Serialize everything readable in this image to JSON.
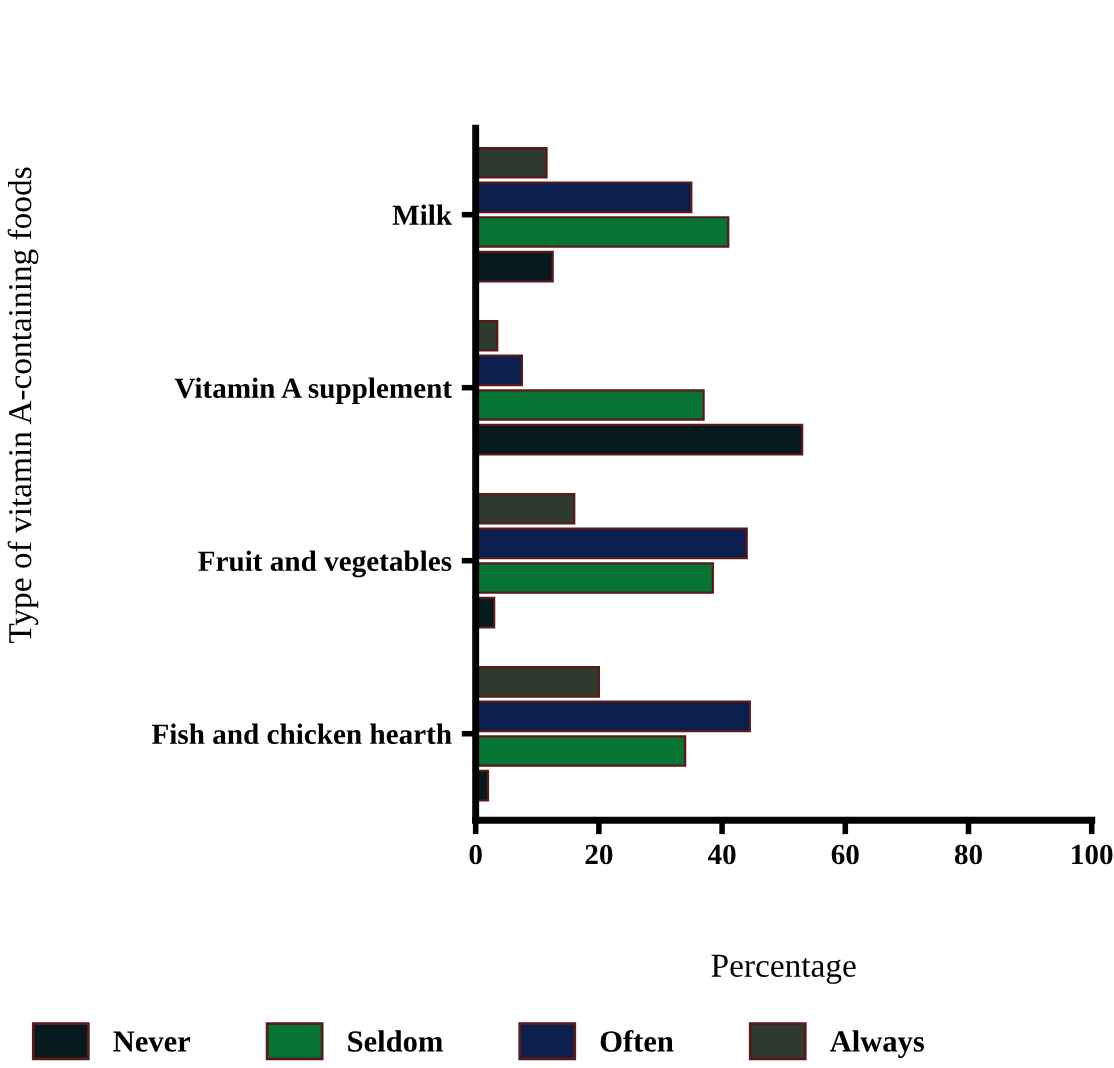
{
  "chart_data": {
    "type": "bar",
    "orientation": "horizontal",
    "xlabel": "Percentage",
    "ylabel": "Type of vitamin A-containing foods",
    "categories": [
      "Milk",
      "Vitamin A supplement",
      "Fruit and vegetables",
      "Fish and chicken hearth"
    ],
    "series": [
      {
        "name": "Never",
        "color": "#041a1e",
        "values": [
          12.5,
          53,
          3,
          2
        ]
      },
      {
        "name": "Seldom",
        "color": "#067533",
        "values": [
          41,
          37,
          38.5,
          34
        ]
      },
      {
        "name": "Often",
        "color": "#0b1f4e",
        "values": [
          35,
          7.5,
          44,
          44.5
        ]
      },
      {
        "name": "Always",
        "color": "#2f3a30",
        "values": [
          11.5,
          3.5,
          16,
          20
        ]
      }
    ],
    "xlim": [
      0,
      100
    ],
    "xticks": [
      0,
      20,
      40,
      60,
      80,
      100
    ],
    "grid": false,
    "legend": "bottom"
  }
}
